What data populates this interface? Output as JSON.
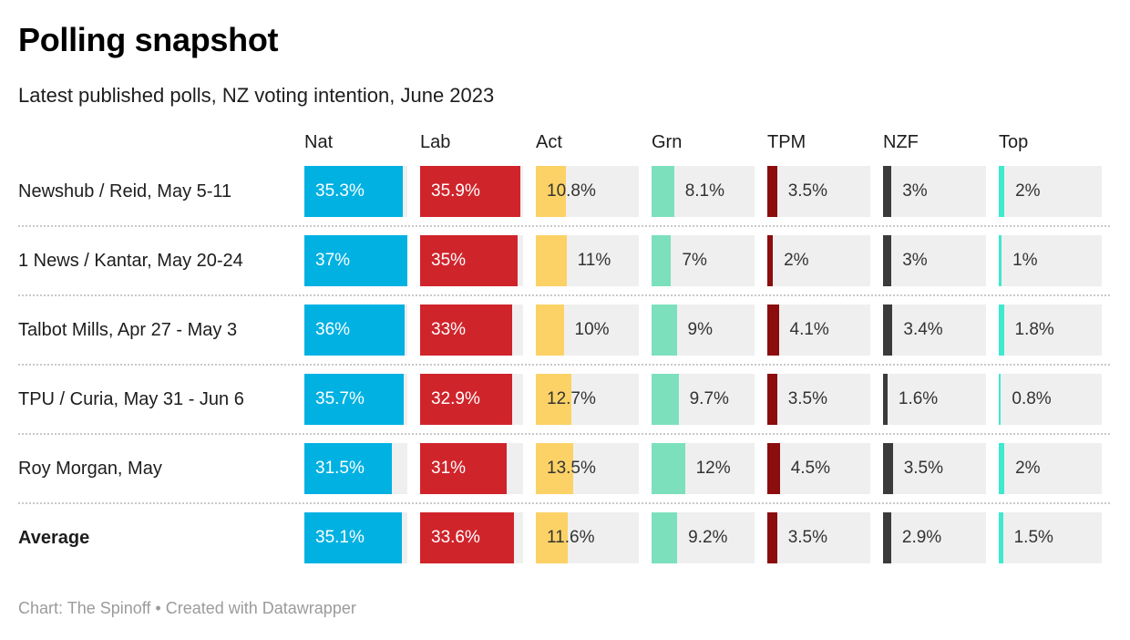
{
  "title": "Polling snapshot",
  "subtitle": "Latest published polls, NZ voting intention, June 2023",
  "footer": "Chart: The Spinoff • Created with Datawrapper",
  "colors": {
    "cell_background": "#efefef",
    "divider": "#c9c9c9",
    "value_label_dark": "#333333",
    "value_label_inside": "#ffffff"
  },
  "chart_data": {
    "type": "bar",
    "title": "Polling snapshot",
    "subtitle": "Latest published polls, NZ voting intention, June 2023",
    "columns": [
      "Nat",
      "Lab",
      "Act",
      "Grn",
      "TPM",
      "NZF",
      "Top"
    ],
    "column_colors": [
      "#00b1e2",
      "#d0242b",
      "#fcd266",
      "#7ce0bd",
      "#8b0d0d",
      "#3b3b3b",
      "#3ee9cd"
    ],
    "scale_max": 37,
    "layout_hint": "each cell is a horizontal bar on a shared 0-37% scale, grey track behind",
    "rows": [
      {
        "label": "Newshub / Reid, May 5-11",
        "bold": false,
        "values": [
          35.3,
          35.9,
          10.8,
          8.1,
          3.5,
          3,
          2
        ],
        "labels": [
          "35.3%",
          "35.9%",
          "10.8%",
          "8.1%",
          "3.5%",
          "3%",
          "2%"
        ]
      },
      {
        "label": "1 News / Kantar, May 20-24",
        "bold": false,
        "values": [
          37,
          35,
          11,
          7,
          2,
          3,
          1
        ],
        "labels": [
          "37%",
          "35%",
          "11%",
          "7%",
          "2%",
          "3%",
          "1%"
        ]
      },
      {
        "label": "Talbot Mills, Apr 27 - May 3",
        "bold": false,
        "values": [
          36,
          33,
          10,
          9,
          4.1,
          3.4,
          1.8
        ],
        "labels": [
          "36%",
          "33%",
          "10%",
          "9%",
          "4.1%",
          "3.4%",
          "1.8%"
        ]
      },
      {
        "label": "TPU / Curia, May 31 - Jun 6",
        "bold": false,
        "values": [
          35.7,
          32.9,
          12.7,
          9.7,
          3.5,
          1.6,
          0.8
        ],
        "labels": [
          "35.7%",
          "32.9%",
          "12.7%",
          "9.7%",
          "3.5%",
          "1.6%",
          "0.8%"
        ]
      },
      {
        "label": "Roy Morgan, May",
        "bold": false,
        "values": [
          31.5,
          31,
          13.5,
          12,
          4.5,
          3.5,
          2
        ],
        "labels": [
          "31.5%",
          "31%",
          "13.5%",
          "12%",
          "4.5%",
          "3.5%",
          "2%"
        ]
      },
      {
        "label": "Average",
        "bold": true,
        "values": [
          35.1,
          33.6,
          11.6,
          9.2,
          3.5,
          2.9,
          1.5
        ],
        "labels": [
          "35.1%",
          "33.6%",
          "11.6%",
          "9.2%",
          "3.5%",
          "2.9%",
          "1.5%"
        ]
      }
    ]
  }
}
